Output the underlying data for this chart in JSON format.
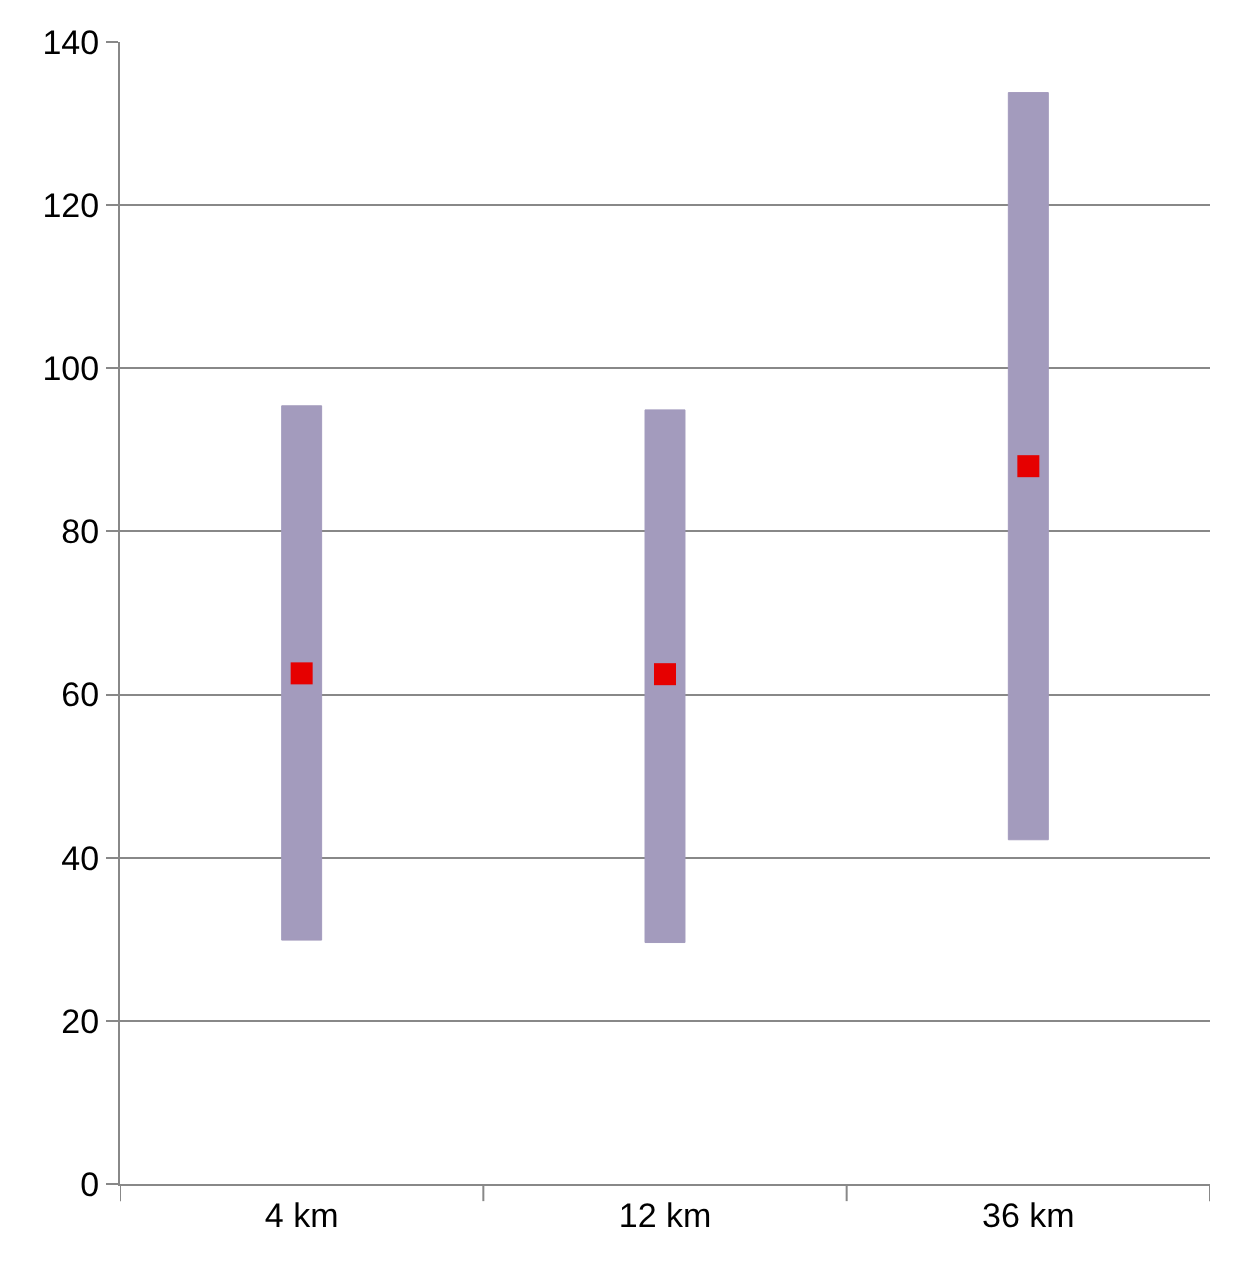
{
  "chart_data": {
    "type": "bar",
    "categories": [
      "4 km",
      "12 km",
      "36 km"
    ],
    "series": [
      {
        "color": "#a39bbd",
        "values": [
          65.5,
          65.3,
          91.6
        ],
        "base": [
          29.9,
          29.6,
          42.2
        ]
      },
      {
        "type": "scatter",
        "marker": "square",
        "color": "#e60000",
        "values": [
          62.6,
          62.5,
          88.0
        ]
      }
    ],
    "ylim": [
      0,
      140
    ],
    "yticks": [
      0,
      20,
      40,
      60,
      80,
      100,
      120,
      140
    ],
    "grid": "y"
  }
}
